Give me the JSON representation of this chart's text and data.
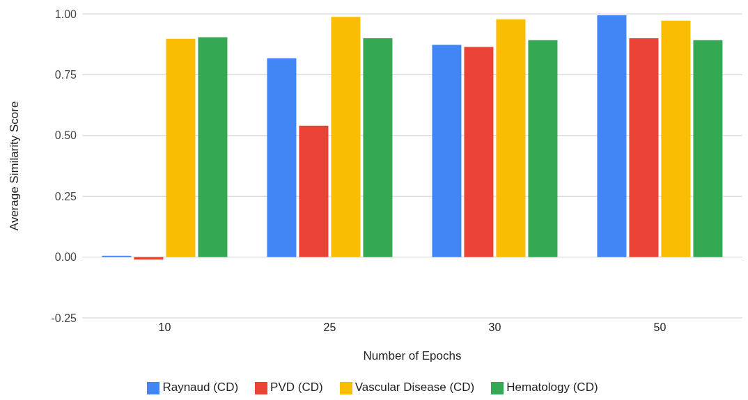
{
  "chart_data": {
    "type": "bar",
    "xlabel": "Number of Epochs",
    "ylabel": "Average Similarity Score",
    "categories": [
      "10",
      "25",
      "30",
      "50"
    ],
    "series": [
      {
        "name": "Raynaud (CD)",
        "color": "#4285f4",
        "values": [
          0.005,
          0.818,
          0.873,
          0.994
        ]
      },
      {
        "name": "PVD (CD)",
        "color": "#ea4335",
        "values": [
          -0.01,
          0.54,
          0.864,
          0.9
        ]
      },
      {
        "name": "Vascular Disease (CD)",
        "color": "#fbbc04",
        "values": [
          0.898,
          0.988,
          0.978,
          0.972
        ]
      },
      {
        "name": "Hematology (CD)",
        "color": "#34a853",
        "values": [
          0.904,
          0.9,
          0.892,
          0.892
        ]
      }
    ],
    "ylim": [
      -0.25,
      1
    ],
    "yticks": [
      {
        "value": -0.25,
        "label": "-0.25"
      },
      {
        "value": 0,
        "label": "0.00"
      },
      {
        "value": 0.25,
        "label": "0.25"
      },
      {
        "value": 0.5,
        "label": "0.50"
      },
      {
        "value": 0.75,
        "label": "0.75"
      },
      {
        "value": 1,
        "label": "1.00"
      }
    ],
    "grid": "y",
    "legend": "bottom"
  }
}
